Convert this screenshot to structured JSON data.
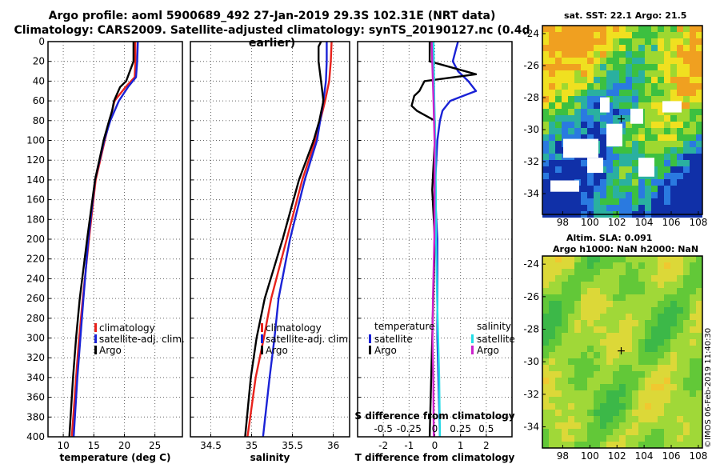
{
  "header": {
    "line1": "Argo profile: aoml 5900689_492 27-Jan-2019 29.3S 102.31E (NRT data)",
    "line2": "Climatology: CARS2009. Satellite-adjusted climatology: synTS_20190127.nc (0.4d earlier)"
  },
  "colors": {
    "climatology": "#e8221c",
    "satellite": "#1a22d6",
    "argo": "#000000",
    "satellite_s": "#22dde6",
    "argo_s": "#cc22cc"
  },
  "chart_data": [
    {
      "type": "line",
      "id": "temperature",
      "xlabel": "temperature (deg C)",
      "ylabel": "depth",
      "xlim": [
        7.5,
        29.5
      ],
      "ylim": [
        400,
        0
      ],
      "xticks": [
        10,
        15,
        20,
        25
      ],
      "yticks": [
        0,
        20,
        40,
        60,
        80,
        100,
        120,
        140,
        160,
        180,
        200,
        220,
        240,
        260,
        280,
        300,
        320,
        340,
        360,
        380,
        400
      ],
      "legend": [
        "climatology",
        "satellite-adj. clim.",
        "Argo"
      ],
      "series": [
        {
          "name": "climatology",
          "color": "#e8221c",
          "depth": [
            0,
            20,
            36,
            46,
            60,
            80,
            100,
            140,
            200,
            260,
            300,
            340,
            400
          ],
          "values": [
            21.8,
            21.8,
            21.7,
            20.2,
            18.4,
            17.6,
            16.8,
            15.3,
            14.2,
            13.2,
            12.6,
            12.1,
            11.4
          ]
        },
        {
          "name": "satellite-adj. clim.",
          "color": "#1a22d6",
          "depth": [
            0,
            20,
            36,
            46,
            60,
            80,
            100,
            140,
            200,
            260,
            300,
            340,
            400
          ],
          "values": [
            22.2,
            22.1,
            21.9,
            20.6,
            19.1,
            17.7,
            16.7,
            15.2,
            14.1,
            13.3,
            12.8,
            12.3,
            11.7
          ]
        },
        {
          "name": "Argo",
          "color": "#000000",
          "depth": [
            0,
            20,
            40,
            46,
            60,
            70,
            80,
            100,
            140,
            200,
            260,
            300,
            340,
            400
          ],
          "values": [
            21.5,
            21.5,
            20.3,
            19.3,
            18.3,
            18.0,
            17.5,
            16.6,
            15.2,
            13.9,
            12.7,
            12.1,
            11.6,
            11.0
          ]
        }
      ]
    },
    {
      "type": "line",
      "id": "salinity",
      "xlabel": "salinity",
      "ylabel": "depth",
      "xlim": [
        34.25,
        36.2
      ],
      "ylim": [
        400,
        0
      ],
      "xticks": [
        34.5,
        35,
        35.5,
        36
      ],
      "xticklabels": [
        "34.5",
        "35",
        "35.5",
        "36"
      ],
      "legend": [
        "climatology",
        "satellite-adj. clim.",
        "Argo"
      ],
      "series": [
        {
          "name": "climatology",
          "color": "#e8221c",
          "depth": [
            0,
            20,
            40,
            60,
            80,
            100,
            140,
            200,
            260,
            300,
            340,
            400
          ],
          "values": [
            35.98,
            35.97,
            35.95,
            35.9,
            35.84,
            35.78,
            35.62,
            35.43,
            35.24,
            35.15,
            35.05,
            34.95
          ]
        },
        {
          "name": "satellite-adj. clim.",
          "color": "#1a22d6",
          "depth": [
            0,
            20,
            40,
            60,
            80,
            100,
            140,
            200,
            260,
            300,
            340,
            400
          ],
          "values": [
            35.92,
            35.92,
            35.91,
            35.88,
            35.84,
            35.8,
            35.65,
            35.47,
            35.33,
            35.28,
            35.22,
            35.14
          ]
        },
        {
          "name": "Argo",
          "color": "#000000",
          "depth": [
            0,
            5,
            20,
            40,
            60,
            80,
            100,
            140,
            200,
            260,
            300,
            340,
            400
          ],
          "values": [
            35.85,
            35.82,
            35.82,
            35.85,
            35.88,
            35.83,
            35.76,
            35.58,
            35.38,
            35.16,
            35.06,
            34.99,
            34.92
          ]
        }
      ]
    },
    {
      "type": "line",
      "id": "difference",
      "xlabel": "T difference from climatology",
      "xlabel2": "S difference from climatology",
      "xlim": [
        -3,
        3
      ],
      "ylim": [
        400,
        0
      ],
      "xticks": [
        -2,
        -1,
        0,
        1,
        2
      ],
      "xticklabels": [
        "-2",
        "-1",
        "0",
        "1",
        "2"
      ],
      "sticks": [
        -0.5,
        -0.25,
        0,
        0.25,
        0.5
      ],
      "sticklabels": [
        "-0.5",
        "-0.25",
        "0",
        "0.25",
        "0.5"
      ],
      "legend_t": {
        "title": "temperature",
        "items": [
          "satellite",
          "Argo"
        ]
      },
      "legend_s": {
        "title": "salinity",
        "items": [
          "satellite",
          "Argo"
        ]
      },
      "series": [
        {
          "name": "T satellite",
          "color": "#1a22d6",
          "depth": [
            0,
            10,
            20,
            30,
            40,
            50,
            55,
            60,
            70,
            80,
            100,
            150,
            200,
            300,
            400
          ],
          "values": [
            0.9,
            0.8,
            0.7,
            0.9,
            1.3,
            1.6,
            1.1,
            0.6,
            0.3,
            0.2,
            0.1,
            0.0,
            0.1,
            0.1,
            0.2
          ]
        },
        {
          "name": "T Argo",
          "color": "#000000",
          "depth": [
            0,
            20,
            33,
            40,
            45,
            50,
            55,
            65,
            70,
            80,
            100,
            150,
            200,
            300,
            400
          ],
          "values": [
            -0.2,
            -0.2,
            1.6,
            -0.4,
            -0.5,
            -0.6,
            -0.8,
            -0.9,
            -0.7,
            0.0,
            0.0,
            -0.1,
            0.0,
            -0.1,
            -0.2
          ]
        },
        {
          "name": "S satellite",
          "color": "#22dde6",
          "depth": [
            0,
            20,
            60,
            80,
            100,
            150,
            200,
            260,
            300,
            340,
            400
          ],
          "values": [
            -0.05,
            -0.04,
            -0.02,
            0.0,
            0.02,
            0.04,
            0.05,
            0.09,
            0.13,
            0.17,
            0.2
          ]
        },
        {
          "name": "S Argo",
          "color": "#cc22cc",
          "depth": [
            0,
            20,
            60,
            80,
            100,
            150,
            200,
            260,
            300,
            340,
            400
          ],
          "values": [
            -0.12,
            -0.1,
            -0.05,
            -0.03,
            -0.01,
            -0.01,
            -0.02,
            -0.07,
            -0.09,
            -0.06,
            -0.04
          ]
        }
      ]
    },
    {
      "type": "heatmap",
      "id": "sst-map",
      "title": "sat. SST: 22.1 Argo: 21.5",
      "xlim": [
        96.5,
        108.3
      ],
      "ylim": [
        -35.3,
        -23.5
      ],
      "xticks": [
        98,
        100,
        102,
        104,
        106,
        108
      ],
      "yticks": [
        -24,
        -26,
        -28,
        -30,
        -32,
        -34
      ]
    },
    {
      "type": "heatmap",
      "id": "sla-map",
      "title": "Altim. SLA: 0.091",
      "subtitle": "Argo h1000: NaN h2000: NaN",
      "xlim": [
        96.5,
        108.3
      ],
      "ylim": [
        -35.3,
        -23.5
      ],
      "xticks": [
        98,
        100,
        102,
        104,
        106,
        108
      ],
      "yticks": [
        -24,
        -26,
        -28,
        -30,
        -32,
        -34
      ]
    }
  ],
  "footer_stamp": "©IMOS 06-Feb-2019 11:40:30"
}
